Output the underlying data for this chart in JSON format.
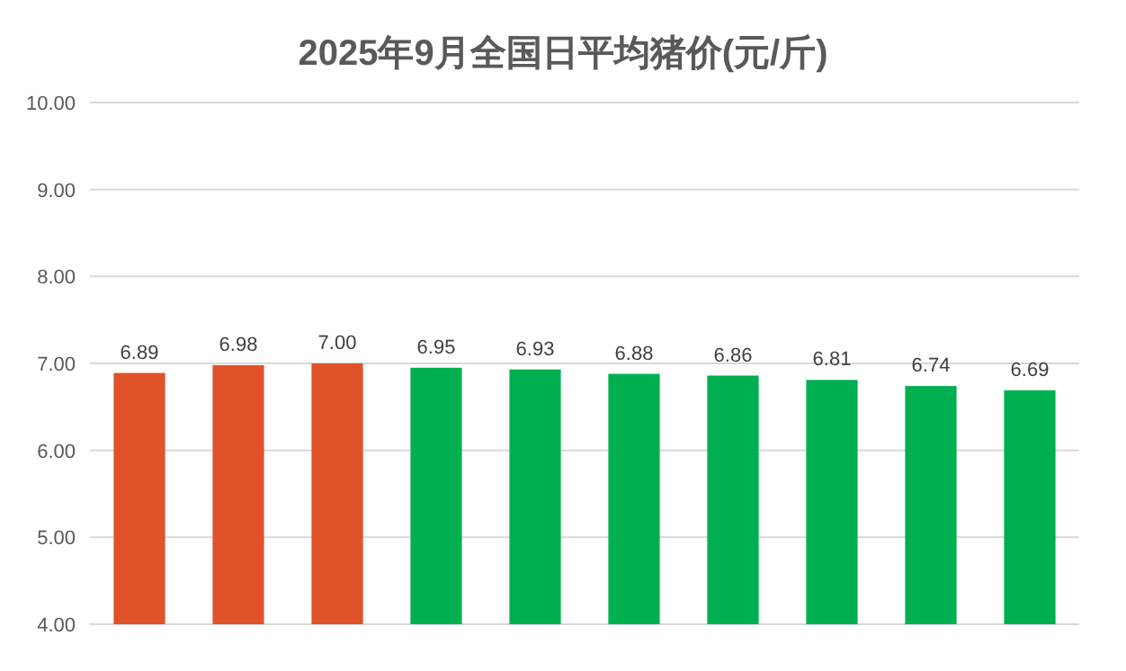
{
  "chart_data": {
    "type": "bar",
    "title": "2025年9月全国日平均猪价(元/斤)",
    "categories": [
      null,
      null,
      null,
      null,
      null,
      null,
      null,
      null,
      null,
      null
    ],
    "values": [
      6.89,
      6.98,
      7.0,
      6.95,
      6.93,
      6.88,
      6.86,
      6.81,
      6.74,
      6.69
    ],
    "colors": [
      "#e05328",
      "#e05328",
      "#e05328",
      "#00b050",
      "#00b050",
      "#00b050",
      "#00b050",
      "#00b050",
      "#00b050",
      "#00b050"
    ],
    "value_labels": [
      "6.89",
      "6.98",
      "7.00",
      "6.95",
      "6.93",
      "6.88",
      "6.86",
      "6.81",
      "6.74",
      "6.69"
    ],
    "ylim": [
      4,
      10
    ],
    "yticks": [
      {
        "value": 4,
        "label": "4.00"
      },
      {
        "value": 5,
        "label": "5.00"
      },
      {
        "value": 6,
        "label": "6.00"
      },
      {
        "value": 7,
        "label": "7.00"
      },
      {
        "value": 8,
        "label": "8.00"
      },
      {
        "value": 9,
        "label": "9.00"
      },
      {
        "value": 10,
        "label": "10.00"
      }
    ],
    "grid": "y"
  }
}
